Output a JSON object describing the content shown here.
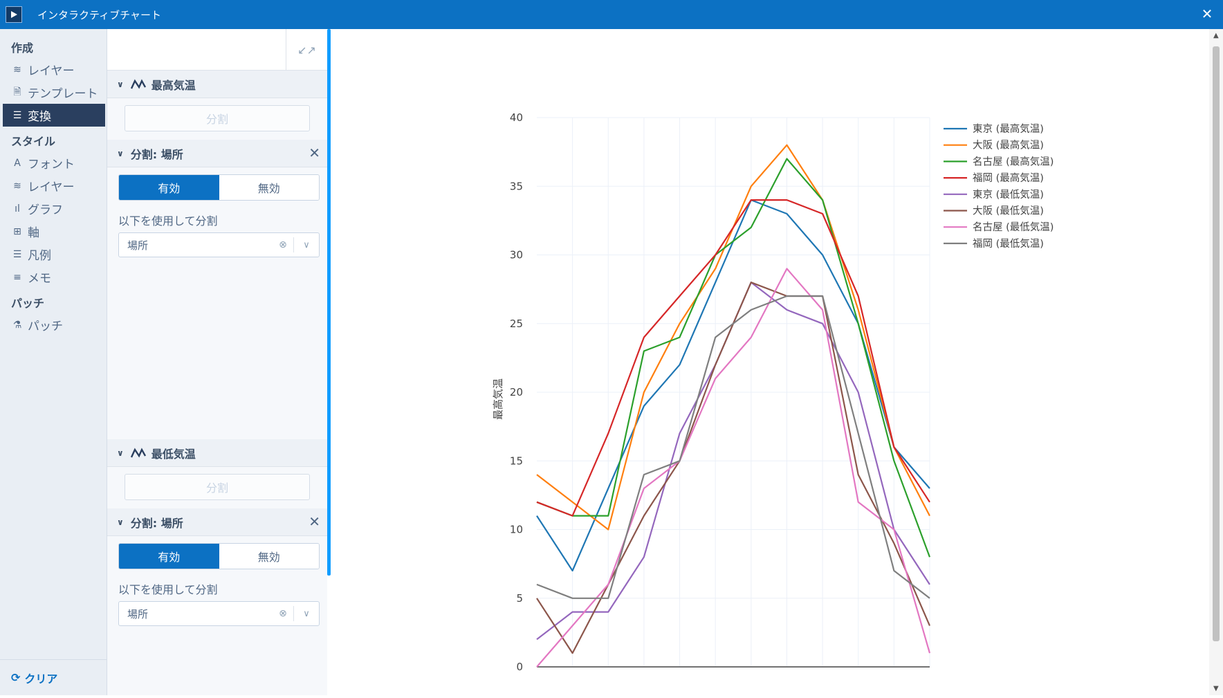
{
  "window": {
    "title": "インタラクティブチャート"
  },
  "nav": {
    "sections": [
      {
        "title": "作成",
        "items": [
          {
            "label": "レイヤー",
            "icon": "layers-icon",
            "glyph": "≋"
          },
          {
            "label": "テンプレート",
            "icon": "document-icon",
            "glyph": "🗎"
          },
          {
            "label": "変換",
            "icon": "list-icon",
            "glyph": "☰",
            "active": true
          }
        ]
      },
      {
        "title": "スタイル",
        "items": [
          {
            "label": "フォント",
            "icon": "font-icon",
            "glyph": "A"
          },
          {
            "label": "レイヤー",
            "icon": "layers-icon",
            "glyph": "≋"
          },
          {
            "label": "グラフ",
            "icon": "bar-chart-icon",
            "glyph": "ıl"
          },
          {
            "label": "軸",
            "icon": "grid-icon",
            "glyph": "⊞"
          },
          {
            "label": "凡例",
            "icon": "list-icon",
            "glyph": "☰"
          },
          {
            "label": "メモ",
            "icon": "text-lines-icon",
            "glyph": "≡"
          }
        ]
      },
      {
        "title": "パッチ",
        "items": [
          {
            "label": "パッチ",
            "icon": "patch-icon",
            "glyph": "⚗"
          }
        ]
      }
    ],
    "clear_label": "クリア"
  },
  "panel": {
    "groups": [
      {
        "trace_title": "最高気温",
        "split_button": "分割",
        "split_title": "分割: 場所",
        "enabled_label": "有効",
        "disabled_label": "無効",
        "split_by_label": "以下を使用して分割",
        "split_by_value": "場所"
      },
      {
        "trace_title": "最低気温",
        "split_button": "分割",
        "split_title": "分割: 場所",
        "enabled_label": "有効",
        "disabled_label": "無効",
        "split_by_label": "以下を使用して分割",
        "split_by_value": "場所"
      }
    ]
  },
  "chart_data": {
    "type": "line",
    "ylabel": "最高気温",
    "xlabel": "",
    "ylim": [
      0,
      40
    ],
    "yticks": [
      0,
      5,
      10,
      15,
      20,
      25,
      30,
      35,
      40
    ],
    "x": [
      1,
      2,
      3,
      4,
      5,
      6,
      7,
      8,
      9,
      10,
      11,
      12
    ],
    "grid": true,
    "legend_position": "top-right",
    "series": [
      {
        "name": "東京 (最高気温)",
        "color": "#1f77b4",
        "values": [
          11,
          7,
          13,
          19,
          22,
          28,
          34,
          33,
          30,
          25,
          16,
          13
        ]
      },
      {
        "name": "大阪 (最高気温)",
        "color": "#ff7f0e",
        "values": [
          14,
          12,
          10,
          20,
          25,
          29,
          35,
          38,
          34,
          26,
          16,
          11
        ]
      },
      {
        "name": "名古屋 (最高気温)",
        "color": "#2ca02c",
        "values": [
          12,
          11,
          11,
          23,
          24,
          30,
          32,
          37,
          34,
          25,
          15,
          8
        ]
      },
      {
        "name": "福岡 (最高気温)",
        "color": "#d62728",
        "values": [
          12,
          11,
          17,
          24,
          27,
          30,
          34,
          34,
          33,
          27,
          16,
          12
        ]
      },
      {
        "name": "東京 (最低気温)",
        "color": "#9467bd",
        "values": [
          2,
          4,
          4,
          8,
          17,
          22,
          28,
          26,
          25,
          20,
          10,
          6
        ]
      },
      {
        "name": "大阪 (最低気温)",
        "color": "#8c564b",
        "values": [
          5,
          1,
          6,
          11,
          15,
          22,
          28,
          27,
          27,
          14,
          9,
          3
        ]
      },
      {
        "name": "名古屋 (最低気温)",
        "color": "#e377c2",
        "values": [
          0,
          3,
          6,
          13,
          15,
          21,
          24,
          29,
          26,
          12,
          10,
          1
        ]
      },
      {
        "name": "福岡 (最低気温)",
        "color": "#7f7f7f",
        "values": [
          6,
          5,
          5,
          14,
          15,
          24,
          26,
          27,
          27,
          17,
          7,
          5
        ]
      }
    ]
  }
}
